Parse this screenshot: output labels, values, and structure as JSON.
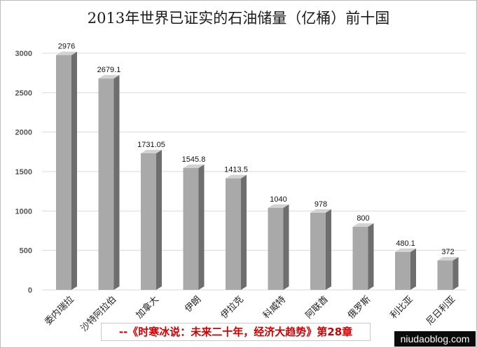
{
  "chart_data": {
    "type": "bar",
    "title": "2013年世界已证实的石油储量（亿桶）前十国",
    "categories": [
      "委内瑞拉",
      "沙特阿拉伯",
      "加拿大",
      "伊朗",
      "伊拉克",
      "科威特",
      "阿联酋",
      "俄罗斯",
      "利比亚",
      "尼日利亚"
    ],
    "values": [
      2976,
      2679.1,
      1731.05,
      1545.8,
      1413.5,
      1040,
      978,
      800,
      480.1,
      372
    ],
    "value_labels": [
      "2976",
      "2679.1",
      "1731.05",
      "1545.8",
      "1413.5",
      "1040",
      "978",
      "800",
      "480.1",
      "372"
    ],
    "yticks": [
      0,
      500,
      1000,
      1500,
      2000,
      2500,
      3000
    ],
    "ylim": [
      0,
      3000
    ],
    "grid": true,
    "legend": "none",
    "colors": {
      "bar_front": "#a9a9a9",
      "bar_side": "#6e6e6e",
      "bar_top": "#d2d2d2",
      "grid": "#d9d9d9"
    }
  },
  "source_note": "--《时寒冰说：未来二十年，经济大趋势》第28章",
  "watermark": "niudaoblog.com"
}
